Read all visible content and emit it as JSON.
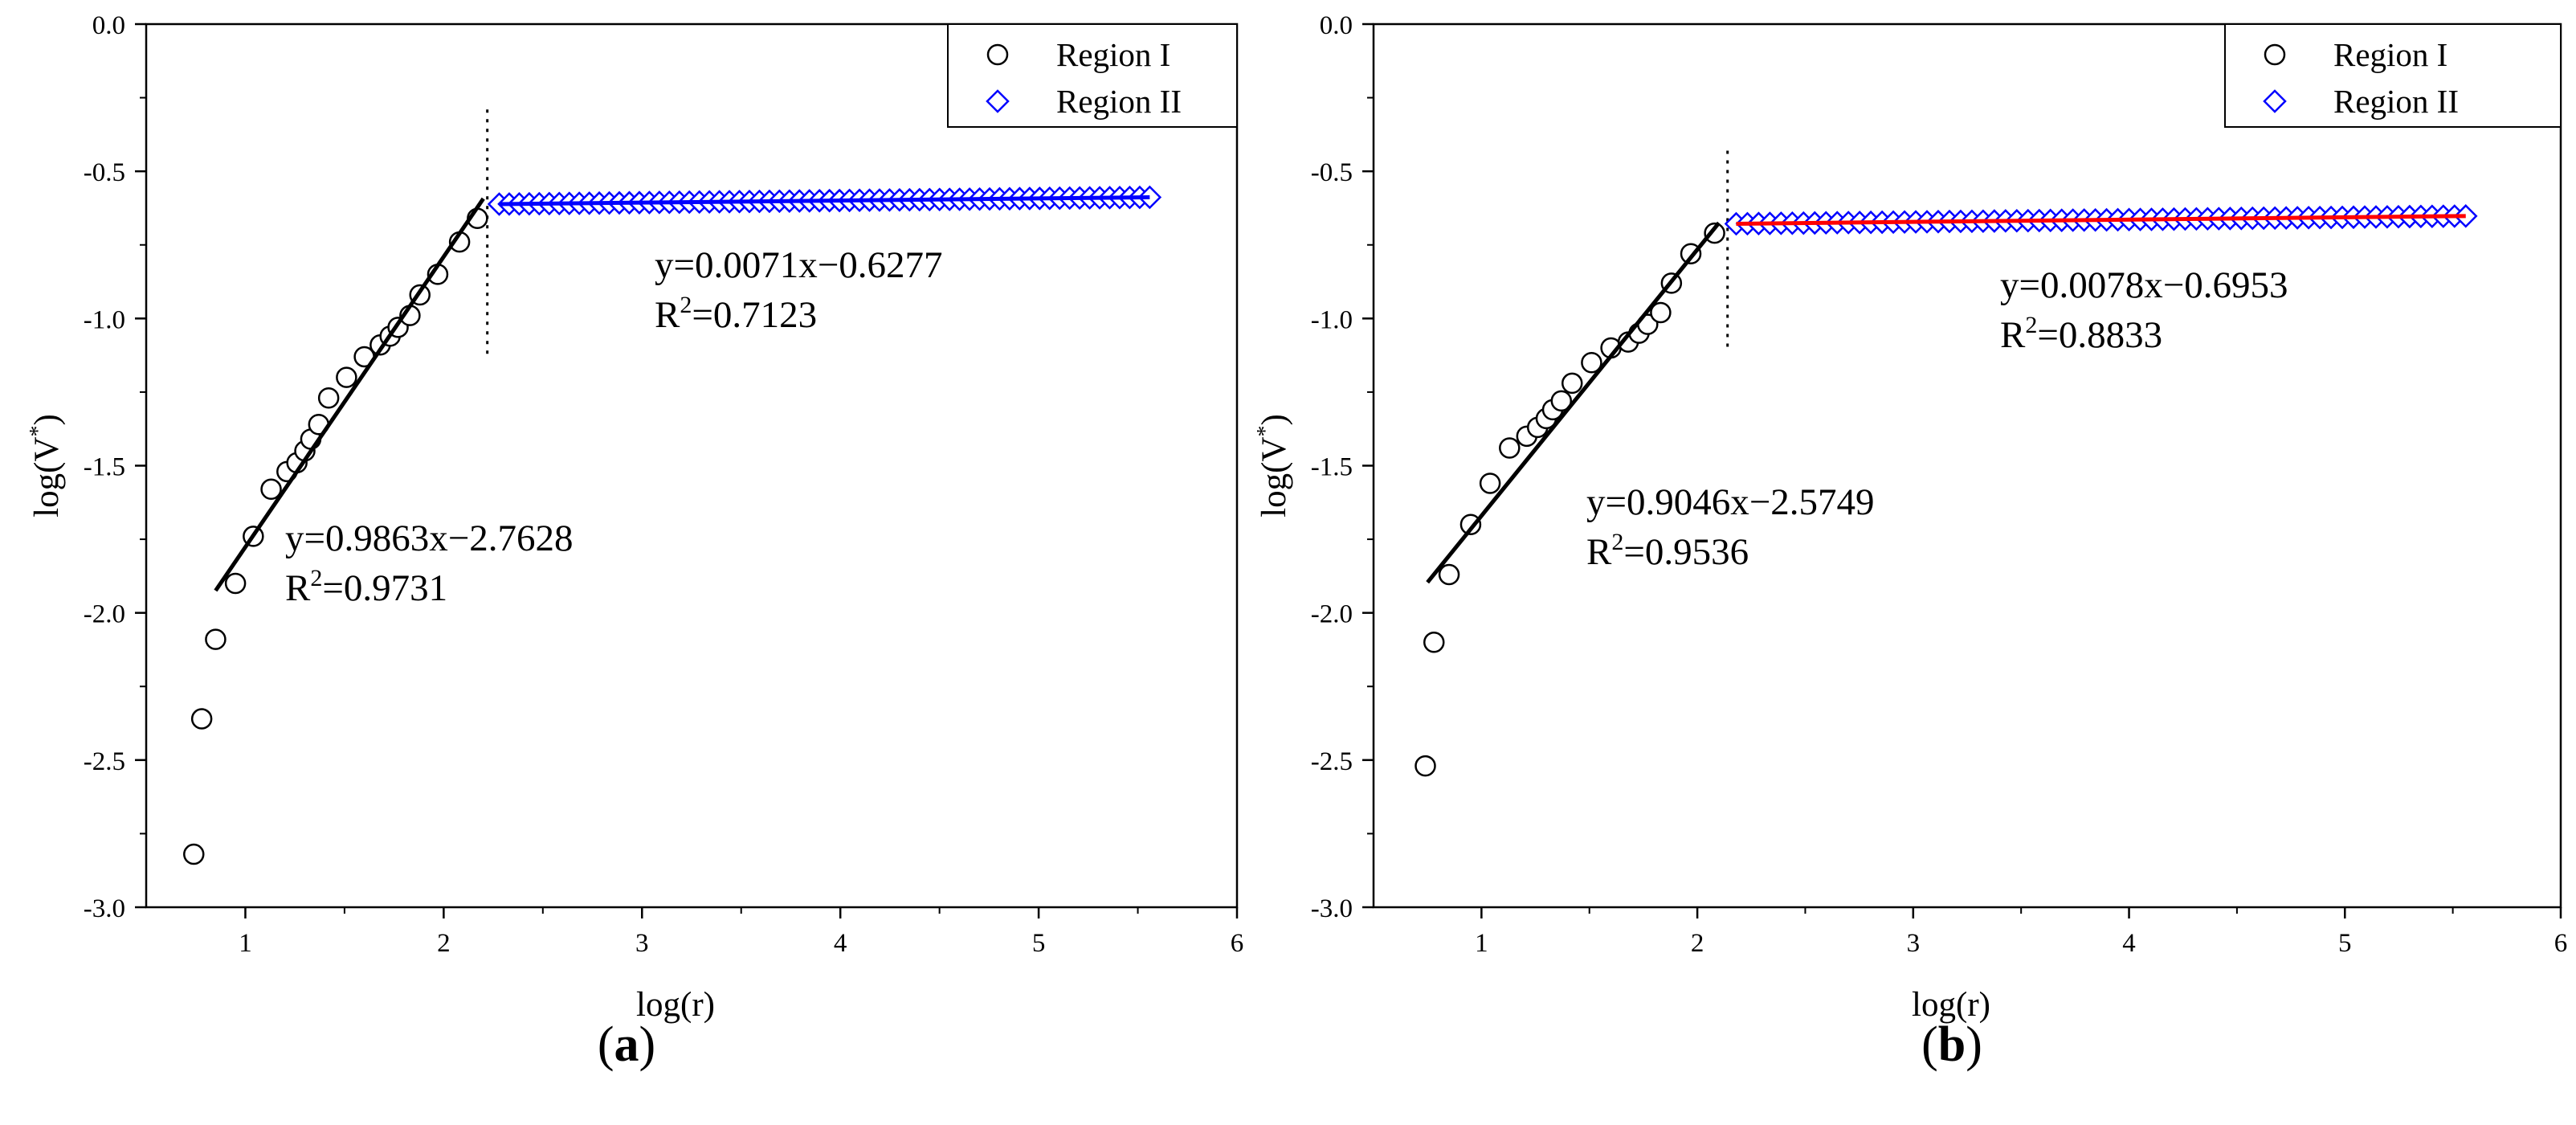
{
  "chart_data": [
    {
      "panel_label": "a",
      "type": "scatter",
      "xlabel": "log(r)",
      "ylabel_base": "log(V",
      "ylabel_sup": "*",
      "ylabel_close": ")",
      "xlim": [
        0.5,
        6
      ],
      "ylim": [
        -3.0,
        0.0
      ],
      "xticks": [
        "1",
        "2",
        "3",
        "4",
        "5",
        "6"
      ],
      "yticks": [
        "0.0",
        "-0.5",
        "-1.0",
        "-1.5",
        "-2.0",
        "-2.5",
        "-3.0"
      ],
      "legend": {
        "position": "top-right",
        "items": [
          "Region I",
          "Region II"
        ]
      },
      "series": [
        {
          "name": "Region I",
          "marker": "circle",
          "color": "#000000",
          "points": [
            [
              0.74,
              -2.82
            ],
            [
              0.78,
              -2.36
            ],
            [
              0.85,
              -2.09
            ],
            [
              0.95,
              -1.9
            ],
            [
              1.04,
              -1.74
            ],
            [
              1.13,
              -1.58
            ],
            [
              1.21,
              -1.52
            ],
            [
              1.26,
              -1.49
            ],
            [
              1.3,
              -1.45
            ],
            [
              1.33,
              -1.41
            ],
            [
              1.37,
              -1.36
            ],
            [
              1.42,
              -1.27
            ],
            [
              1.51,
              -1.2
            ],
            [
              1.6,
              -1.13
            ],
            [
              1.68,
              -1.09
            ],
            [
              1.73,
              -1.06
            ],
            [
              1.77,
              -1.03
            ],
            [
              1.83,
              -0.99
            ],
            [
              1.88,
              -0.92
            ],
            [
              1.97,
              -0.85
            ],
            [
              2.08,
              -0.74
            ],
            [
              2.17,
              -0.66
            ]
          ]
        },
        {
          "name": "Region II",
          "marker": "diamond",
          "color": "#0000ff",
          "x_start": 2.28,
          "x_end": 5.56,
          "count": 66,
          "fit": {
            "slope": 0.0071,
            "intercept": -0.6277
          }
        }
      ],
      "fits": [
        {
          "x": [
            0.85,
            2.2
          ],
          "slope": 0.9863,
          "intercept": -2.7628,
          "color": "#000000",
          "equation": "y=0.9863x−2.7628",
          "r2_label": "R",
          "r2_sup": "2",
          "r2_value": "=0.9731"
        },
        {
          "x": [
            2.28,
            5.56
          ],
          "slope": 0.0071,
          "intercept": -0.6277,
          "color": "#0000ff",
          "equation": "y=0.0071x−0.6277",
          "r2_label": "R",
          "r2_sup": "2",
          "r2_value": "=0.7123"
        }
      ],
      "breakpoint": {
        "x": 2.22,
        "y_range": [
          -1.12,
          -0.29
        ]
      }
    },
    {
      "panel_label": "b",
      "type": "scatter",
      "xlabel": "log(r)",
      "ylabel_base": "log(V",
      "ylabel_sup": "*",
      "ylabel_close": ")",
      "xlim": [
        0.5,
        6
      ],
      "ylim": [
        -3.0,
        0.0
      ],
      "xticks": [
        "1",
        "2",
        "3",
        "4",
        "5",
        "6"
      ],
      "yticks": [
        "0.0",
        "-0.5",
        "-1.0",
        "-1.5",
        "-2.0",
        "-2.5",
        "-3.0"
      ],
      "legend": {
        "position": "top-right",
        "items": [
          "Region I",
          "Region II"
        ]
      },
      "series": [
        {
          "name": "Region I",
          "marker": "circle",
          "color": "#000000",
          "points": [
            [
              0.74,
              -2.52
            ],
            [
              0.78,
              -2.1
            ],
            [
              0.85,
              -1.87
            ],
            [
              0.95,
              -1.7
            ],
            [
              1.04,
              -1.56
            ],
            [
              1.13,
              -1.44
            ],
            [
              1.21,
              -1.4
            ],
            [
              1.26,
              -1.37
            ],
            [
              1.3,
              -1.34
            ],
            [
              1.33,
              -1.31
            ],
            [
              1.37,
              -1.28
            ],
            [
              1.42,
              -1.22
            ],
            [
              1.51,
              -1.15
            ],
            [
              1.6,
              -1.1
            ],
            [
              1.68,
              -1.08
            ],
            [
              1.73,
              -1.05
            ],
            [
              1.77,
              -1.02
            ],
            [
              1.83,
              -0.98
            ],
            [
              1.88,
              -0.88
            ],
            [
              1.97,
              -0.78
            ],
            [
              2.08,
              -0.71
            ]
          ]
        },
        {
          "name": "Region II",
          "marker": "diamond",
          "color": "#0000ff",
          "x_start": 2.18,
          "x_end": 5.56,
          "count": 66,
          "fit": {
            "slope": 0.0078,
            "intercept": -0.6953
          }
        }
      ],
      "fits": [
        {
          "x": [
            0.75,
            2.1
          ],
          "slope": 0.9046,
          "intercept": -2.5749,
          "color": "#000000",
          "equation": "y=0.9046x−2.5749",
          "r2_label": "R",
          "r2_sup": "2",
          "r2_value": "=0.9536"
        },
        {
          "x": [
            2.18,
            5.56
          ],
          "slope": 0.0078,
          "intercept": -0.6953,
          "color": "#ff0000",
          "equation": "y=0.0078x−0.6953",
          "r2_label": "R",
          "r2_sup": "2",
          "r2_value": "=0.8833"
        }
      ],
      "breakpoint": {
        "x": 2.14,
        "y_range": [
          -1.1,
          -0.43
        ]
      }
    }
  ]
}
